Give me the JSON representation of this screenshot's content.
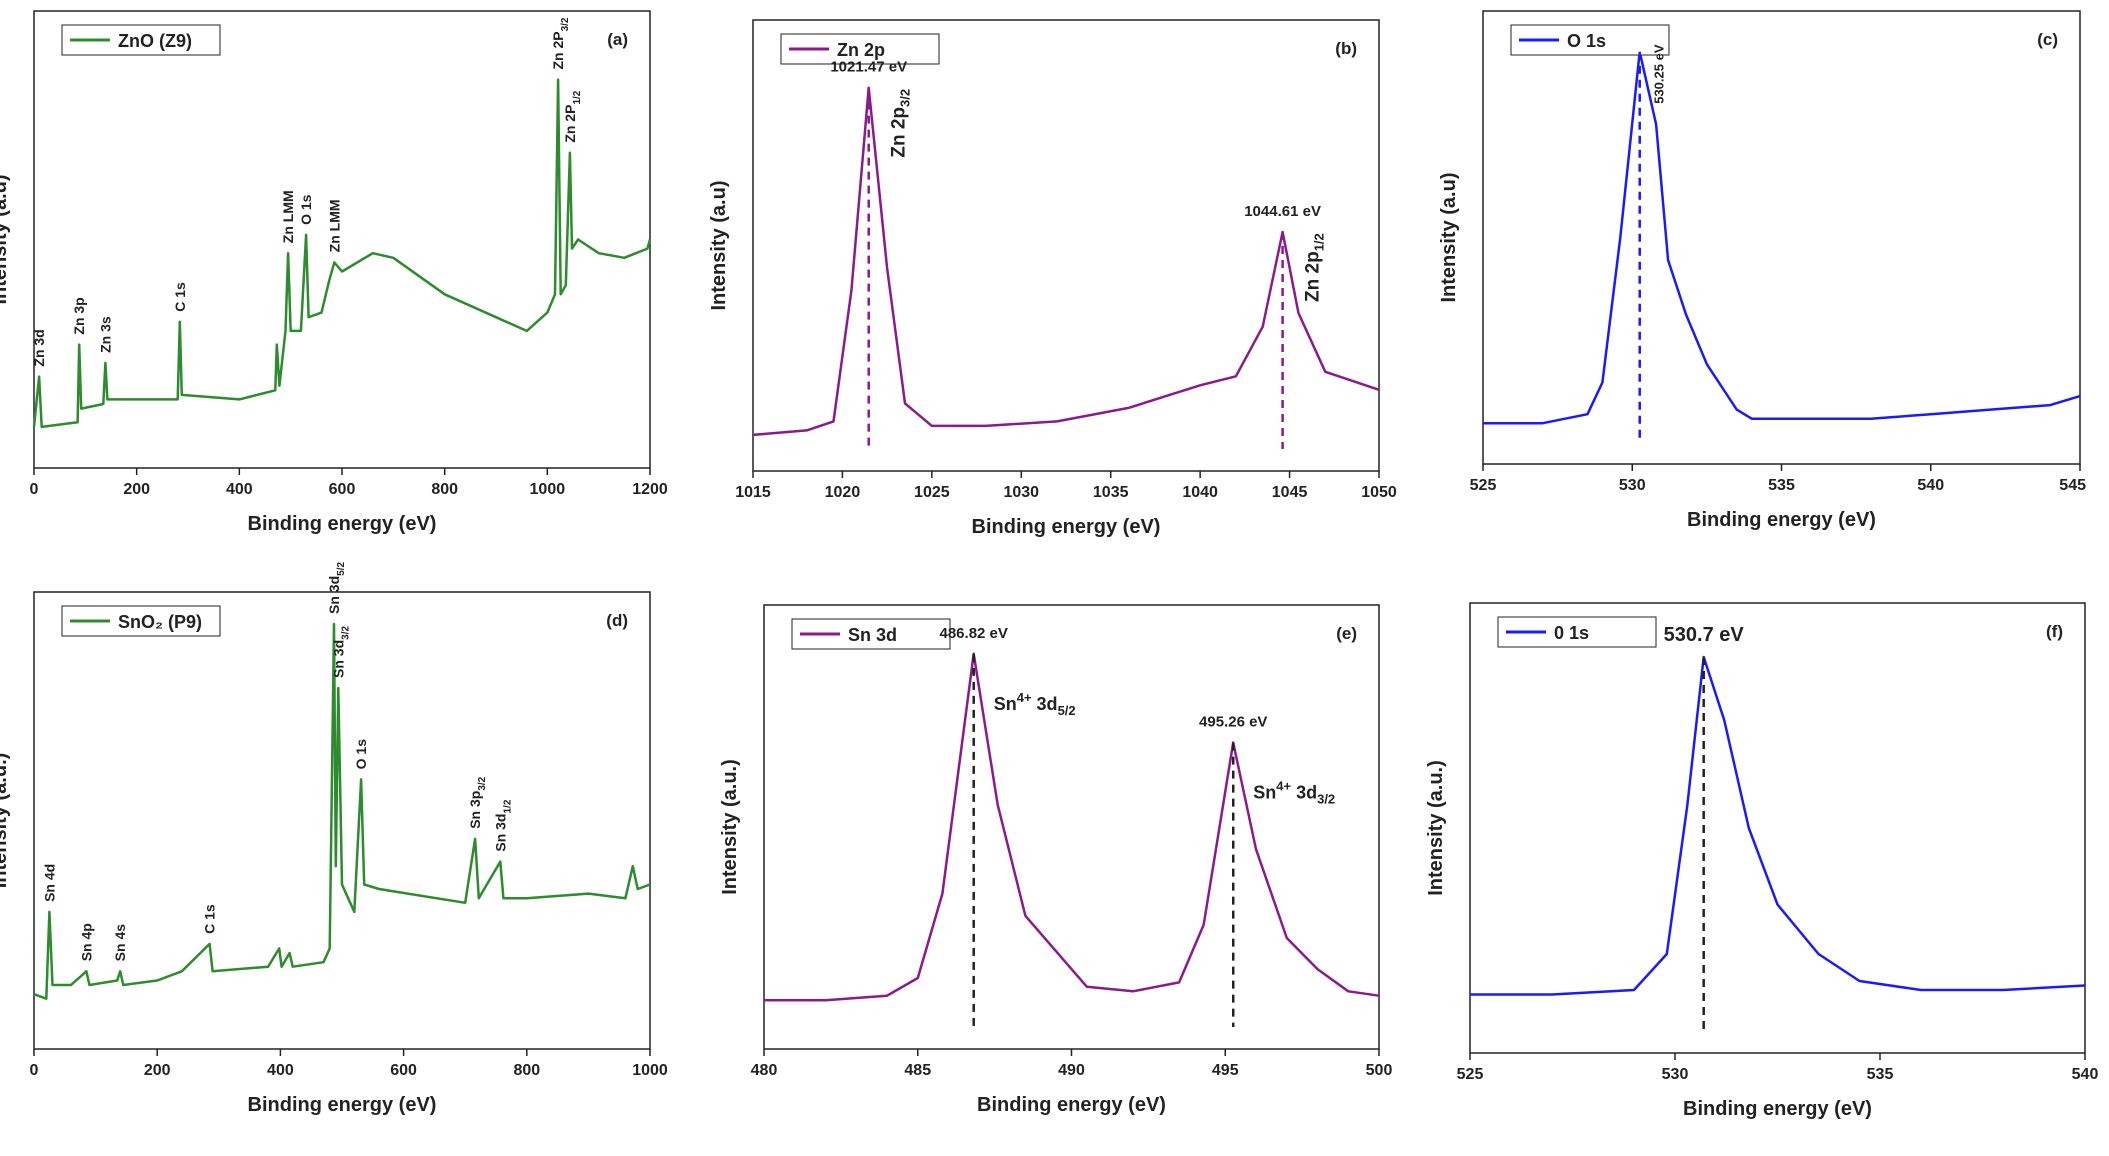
{
  "chart_data": [
    {
      "type": "line",
      "panel_label": "(a)",
      "xlabel": "Binding energy (eV)",
      "ylabel": "Intensity (a.u)",
      "x": [
        0,
        10,
        15,
        85,
        88,
        92,
        135,
        139,
        143,
        200,
        280,
        284,
        288,
        400,
        470,
        473,
        478,
        490,
        495,
        500,
        520,
        530,
        535,
        560,
        575,
        585,
        600,
        660,
        700,
        800,
        900,
        960,
        1000,
        1015,
        1021,
        1026,
        1036,
        1044,
        1048,
        1060,
        1100,
        1150,
        1195,
        1200
      ],
      "series": [
        {
          "name": "ZnO (Z9)",
          "color": "#2e8b2e",
          "values": [
            9,
            20,
            9,
            10,
            27,
            13,
            14,
            23,
            15,
            15,
            15,
            32,
            16,
            15,
            17,
            27,
            18,
            30,
            47,
            30,
            30,
            51,
            33,
            34,
            41,
            45,
            43,
            47,
            46,
            38,
            33,
            30,
            34,
            38,
            85,
            38,
            40,
            69,
            48,
            50,
            47,
            46,
            48,
            50
          ]
        }
      ],
      "xlim": [
        0,
        1200
      ],
      "xticks": [
        0,
        200,
        400,
        600,
        800,
        1000,
        1200
      ],
      "ylim": [
        0,
        100
      ],
      "annotations": [
        {
          "x": 10,
          "parts": [
            {
              "text": "Zn 3d"
            }
          ]
        },
        {
          "x": 88,
          "parts": [
            {
              "text": "Zn 3p"
            }
          ]
        },
        {
          "x": 139,
          "parts": [
            {
              "text": "Zn 3s"
            }
          ]
        },
        {
          "x": 284,
          "parts": [
            {
              "text": "C 1s"
            }
          ]
        },
        {
          "x": 495,
          "parts": [
            {
              "text": "Zn LMM"
            }
          ]
        },
        {
          "x": 530,
          "parts": [
            {
              "text": "O 1s"
            }
          ]
        },
        {
          "x": 585,
          "parts": [
            {
              "text": "Zn LMM"
            }
          ]
        },
        {
          "x": 1021,
          "parts": [
            {
              "text": "Zn 2P"
            },
            {
              "sub": "3/2"
            }
          ]
        },
        {
          "x": 1044,
          "parts": [
            {
              "text": "Zn 2P"
            },
            {
              "sub": "1/2"
            }
          ]
        }
      ]
    },
    {
      "type": "line",
      "panel_label": "(b)",
      "xlabel": "Binding energy (eV)",
      "ylabel": "Intensity (a.u)",
      "x": [
        1015,
        1018,
        1019.5,
        1020.5,
        1021.47,
        1022.5,
        1023.5,
        1025,
        1028,
        1032,
        1036,
        1040,
        1042,
        1043.5,
        1044.61,
        1045.5,
        1047,
        1050
      ],
      "series": [
        {
          "name": "Zn 2p",
          "color": "#8b1a8b",
          "values": [
            8,
            9,
            11,
            40,
            85,
            45,
            15,
            10,
            10,
            11,
            14,
            19,
            21,
            32,
            53,
            35,
            22,
            18
          ]
        }
      ],
      "xlim": [
        1015,
        1050
      ],
      "xticks": [
        1015,
        1020,
        1025,
        1030,
        1035,
        1040,
        1045,
        1050
      ],
      "ylim": [
        0,
        100
      ],
      "peaks": [
        {
          "x": 1021.47,
          "label": "1021.47 eV",
          "parts": [
            {
              "text": "Zn 2p"
            },
            {
              "sub": "3/2"
            }
          ]
        },
        {
          "x": 1044.61,
          "label": "1044.61 eV",
          "parts": [
            {
              "text": "Zn 2p"
            },
            {
              "sub": "1/2"
            }
          ]
        }
      ]
    },
    {
      "type": "line",
      "panel_label": "(c)",
      "xlabel": "Binding energy (eV)",
      "ylabel": "Intensity (a.u)",
      "x": [
        525,
        527,
        528.5,
        529,
        529.6,
        530.25,
        530.8,
        531.2,
        531.8,
        532.5,
        533.5,
        534,
        536,
        538,
        540,
        542,
        544,
        545
      ],
      "series": [
        {
          "name": "O 1s",
          "color": "#1a1aff",
          "values": [
            9,
            9,
            11,
            18,
            50,
            91,
            75,
            45,
            33,
            22,
            12,
            10,
            10,
            10,
            11,
            12,
            13,
            15
          ]
        }
      ],
      "xlim": [
        525,
        545
      ],
      "xticks": [
        525,
        530,
        535,
        540,
        545
      ],
      "ylim": [
        0,
        100
      ],
      "peaks": [
        {
          "x": 530.25,
          "label": "530.25 eV"
        }
      ]
    },
    {
      "type": "line",
      "panel_label": "(d)",
      "xlabel": "Binding energy (eV)",
      "ylabel": "Intensity (a.u.)",
      "x": [
        0,
        20,
        25,
        30,
        60,
        85,
        90,
        135,
        140,
        145,
        200,
        240,
        285,
        290,
        380,
        398,
        402,
        415,
        420,
        470,
        480,
        487,
        490,
        494,
        500,
        520,
        531,
        536,
        560,
        700,
        716,
        722,
        757,
        762,
        800,
        900,
        960,
        972,
        980,
        1000
      ],
      "series": [
        {
          "name": "SnO₂ (P9)",
          "color": "#2e8b2e",
          "values": [
            12,
            11,
            30,
            14,
            14,
            17,
            14,
            15,
            17,
            14,
            15,
            17,
            23,
            17,
            18,
            22,
            18,
            21,
            18,
            19,
            22,
            93,
            40,
            79,
            36,
            30,
            59,
            36,
            35,
            32,
            46,
            33,
            41,
            33,
            33,
            34,
            33,
            40,
            35,
            36
          ]
        }
      ],
      "xlim": [
        0,
        1000
      ],
      "xticks": [
        0,
        200,
        400,
        600,
        800,
        1000
      ],
      "ylim": [
        0,
        100
      ],
      "annotations": [
        {
          "x": 25,
          "parts": [
            {
              "text": "Sn 4d"
            }
          ]
        },
        {
          "x": 85,
          "parts": [
            {
              "text": "Sn 4p"
            }
          ]
        },
        {
          "x": 140,
          "parts": [
            {
              "text": "Sn 4s"
            }
          ]
        },
        {
          "x": 285,
          "parts": [
            {
              "text": "C 1s"
            }
          ]
        },
        {
          "x": 487,
          "parts": [
            {
              "text": "Sn 3d"
            },
            {
              "sub": "5/2"
            }
          ]
        },
        {
          "x": 494,
          "parts": [
            {
              "text": "Sn 3d"
            },
            {
              "sub": "3/2"
            }
          ]
        },
        {
          "x": 531,
          "parts": [
            {
              "text": "O 1s"
            }
          ]
        },
        {
          "x": 716,
          "parts": [
            {
              "text": "Sn 3p"
            },
            {
              "sub": "3/2"
            }
          ]
        },
        {
          "x": 757,
          "parts": [
            {
              "text": "Sn 3d"
            },
            {
              "sub": "1/2"
            }
          ]
        }
      ]
    },
    {
      "type": "line",
      "panel_label": "(e)",
      "xlabel": "Binding energy (eV)",
      "ylabel": "Intensity (a.u.)",
      "x": [
        480,
        482,
        484,
        485,
        485.8,
        486.82,
        487.6,
        488.5,
        489.5,
        490.5,
        492,
        493.5,
        494.3,
        495.26,
        496,
        497,
        498,
        499,
        500
      ],
      "series": [
        {
          "name": "Sn 3d",
          "color": "#8b1a8b",
          "values": [
            11,
            11,
            12,
            16,
            35,
            89,
            55,
            30,
            22,
            14,
            13,
            15,
            28,
            69,
            45,
            25,
            18,
            13,
            12
          ]
        }
      ],
      "xlim": [
        480,
        500
      ],
      "xticks": [
        480,
        485,
        490,
        495,
        500
      ],
      "ylim": [
        0,
        100
      ],
      "peaks": [
        {
          "x": 486.82,
          "label": "486.82 eV",
          "parts": [
            {
              "text": "Sn"
            },
            {
              "sup": "4+"
            },
            {
              "text": " 3d"
            },
            {
              "sub": "5/2"
            }
          ]
        },
        {
          "x": 495.26,
          "label": "495.26 eV",
          "parts": [
            {
              "text": "Sn"
            },
            {
              "sup": "4+"
            },
            {
              "text": " 3d"
            },
            {
              "sub": "3/2"
            }
          ]
        }
      ]
    },
    {
      "type": "line",
      "panel_label": "(f)",
      "xlabel": "Binding energy (eV)",
      "ylabel": "Intensity (a.u.)",
      "x": [
        525,
        527,
        529,
        529.8,
        530.3,
        530.7,
        531.2,
        531.8,
        532.5,
        533.5,
        534.5,
        536,
        538,
        540
      ],
      "series": [
        {
          "name": "0 1s",
          "color": "#1a1aff",
          "values": [
            13,
            13,
            14,
            22,
            55,
            88,
            74,
            50,
            33,
            22,
            16,
            14,
            14,
            15
          ]
        }
      ],
      "xlim": [
        525,
        540
      ],
      "xticks": [
        525,
        530,
        535,
        540
      ],
      "ylim": [
        0,
        100
      ],
      "peaks": [
        {
          "x": 530.7,
          "label": "530.7 eV"
        }
      ]
    }
  ]
}
